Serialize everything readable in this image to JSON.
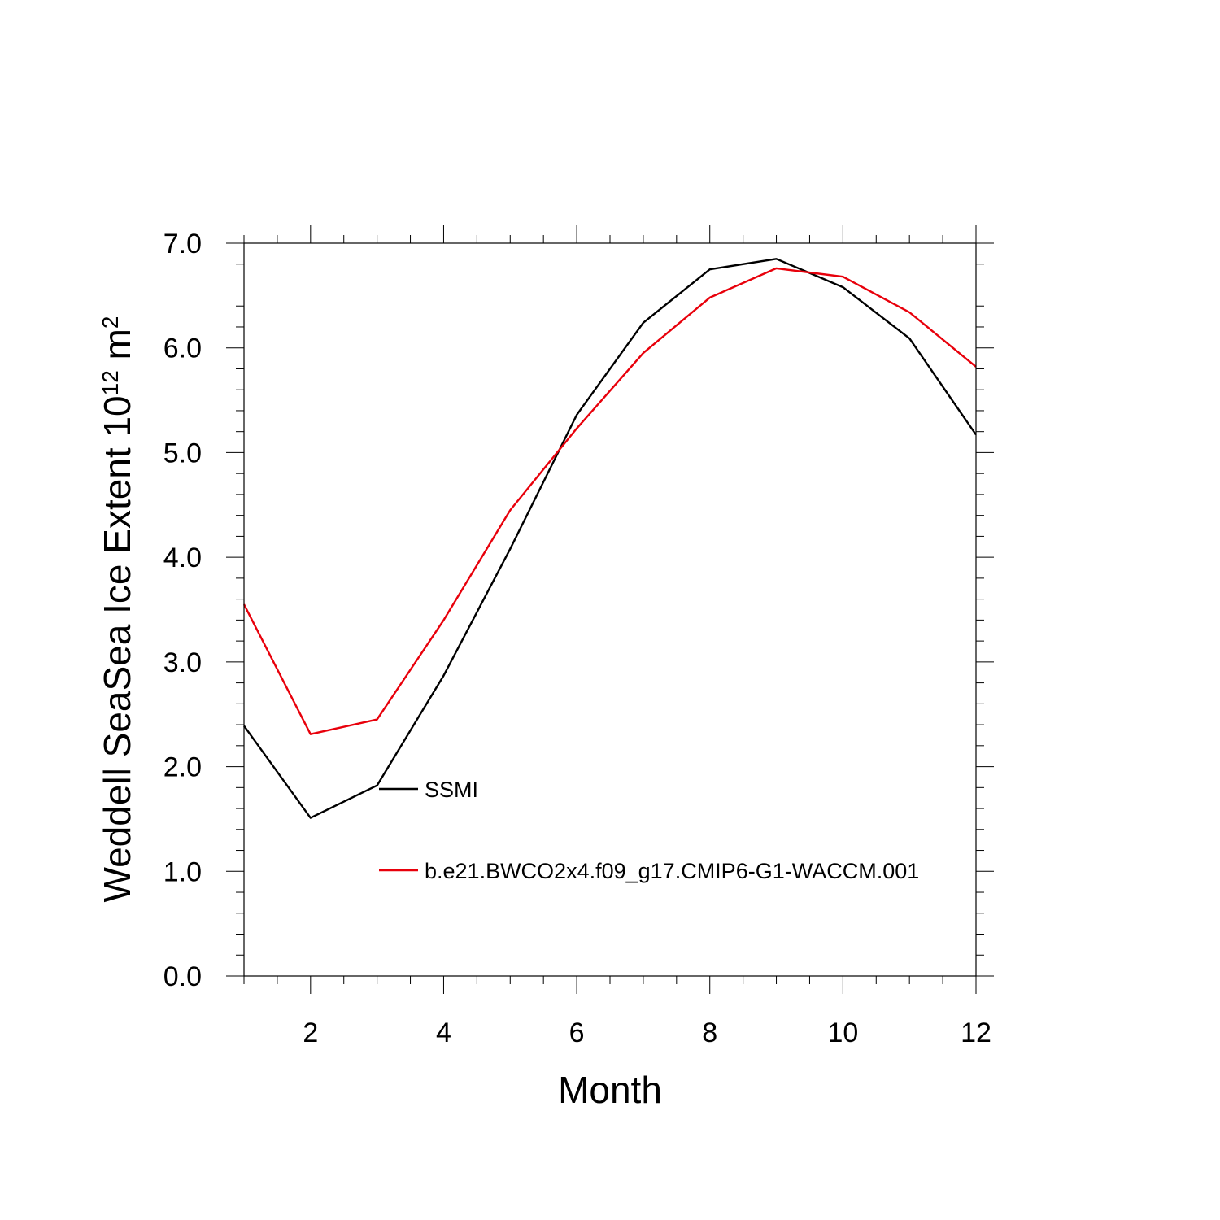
{
  "chart_data": {
    "type": "line",
    "xlabel": "Month",
    "ylabel_main": "Weddell SeaSea Ice Extent 10",
    "ylabel_sup": "12",
    "ylabel_unit": " m",
    "ylabel_sup2": "2",
    "xlim": [
      1,
      12
    ],
    "ylim": [
      0,
      7
    ],
    "x_ticks": [
      2,
      4,
      6,
      8,
      10,
      12
    ],
    "x_tick_labels": [
      "2",
      "4",
      "6",
      "8",
      "10",
      "12"
    ],
    "y_ticks": [
      0,
      1,
      2,
      3,
      4,
      5,
      6,
      7
    ],
    "y_tick_labels": [
      "0.0",
      "1.0",
      "2.0",
      "3.0",
      "4.0",
      "5.0",
      "6.0",
      "7.0"
    ],
    "x": [
      1,
      2,
      3,
      4,
      5,
      6,
      7,
      8,
      9,
      10,
      11,
      12
    ],
    "series": [
      {
        "name": "SSMI",
        "color": "#000000",
        "values": [
          2.39,
          1.51,
          1.82,
          2.87,
          4.08,
          5.36,
          6.24,
          6.75,
          6.85,
          6.58,
          6.09,
          5.17
        ]
      },
      {
        "name": "b.e21.BWCO2x4.f09_g17.CMIP6-G1-WACCM.001",
        "color": "#e8000b",
        "values": [
          3.55,
          2.31,
          2.45,
          3.4,
          4.45,
          5.23,
          5.95,
          6.48,
          6.76,
          6.68,
          6.34,
          5.82
        ]
      }
    ],
    "legend_position": "inside-lower-center",
    "grid": false
  }
}
